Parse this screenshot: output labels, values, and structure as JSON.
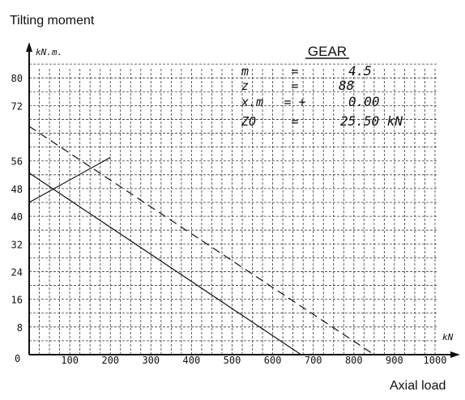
{
  "chart_data": {
    "type": "line",
    "title": "",
    "xlabel": "Axial load",
    "ylabel": "Tilting moment",
    "xunit": "kN",
    "yunit": "kN.m.",
    "xlim": [
      0,
      1000
    ],
    "ylim": [
      0,
      88
    ],
    "x_ticks": [
      100,
      200,
      300,
      400,
      500,
      600,
      700,
      800,
      900,
      1000
    ],
    "y_ticks": [
      8,
      16,
      24,
      32,
      40,
      48,
      56,
      72,
      80
    ],
    "origin_label": "0",
    "grid": true,
    "series": [
      {
        "style": "solid",
        "x": [
          0,
          670
        ],
        "y": [
          52.5,
          0
        ]
      },
      {
        "style": "dashed",
        "x": [
          0,
          850
        ],
        "y": [
          66,
          0
        ]
      },
      {
        "style": "solid",
        "x": [
          0,
          200
        ],
        "y": [
          44,
          57
        ]
      }
    ]
  },
  "gear_table": {
    "title": "GEAR",
    "rows": [
      {
        "symbol": "m",
        "sign": "=",
        "value": "4.5"
      },
      {
        "symbol": "z",
        "sign": "=",
        "value": "88"
      },
      {
        "symbol": "x.m",
        "sign": "= +",
        "value": "0.00"
      },
      {
        "symbol": "ZO",
        "sign": "=",
        "value": "25.50 kN"
      }
    ]
  }
}
